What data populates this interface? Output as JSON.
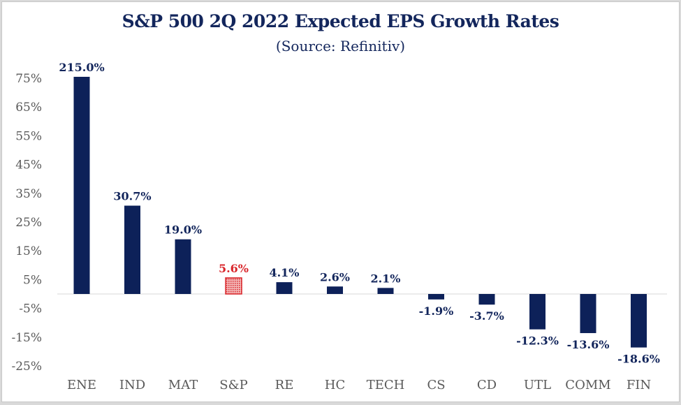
{
  "chart_data": {
    "type": "bar",
    "title": "S&P 500 2Q 2022 Expected EPS Growth Rates",
    "subtitle": "(Source: Refinitiv)",
    "xlabel": "",
    "ylabel": "",
    "categories": [
      "ENE",
      "IND",
      "MAT",
      "S&P",
      "RE",
      "HC",
      "TECH",
      "CS",
      "CD",
      "UTL",
      "COMM",
      "FIN"
    ],
    "values": [
      215.0,
      30.7,
      19.0,
      5.6,
      4.1,
      2.6,
      2.1,
      -1.9,
      -3.7,
      -12.3,
      -13.6,
      -18.6
    ],
    "data_labels": [
      "215.0%",
      "30.7%",
      "19.0%",
      "5.6%",
      "4.1%",
      "2.6%",
      "2.1%",
      "-1.9%",
      "-3.7%",
      "-12.3%",
      "-13.6%",
      "-18.6%"
    ],
    "highlight_category": "S&P",
    "yticks": [
      "75%",
      "65%",
      "55%",
      "45%",
      "35%",
      "25%",
      "15%",
      "5%",
      "-5%",
      "-15%",
      "-25%"
    ],
    "ytick_values": [
      75,
      65,
      55,
      45,
      35,
      25,
      15,
      5,
      -5,
      -15,
      -25
    ],
    "ylim": [
      -25,
      75
    ],
    "grid": false,
    "legend": "none",
    "colors": {
      "bar": "#0d2159",
      "highlight": "#d9262b",
      "label": "#13265c",
      "highlight_label": "#d9262b"
    }
  }
}
